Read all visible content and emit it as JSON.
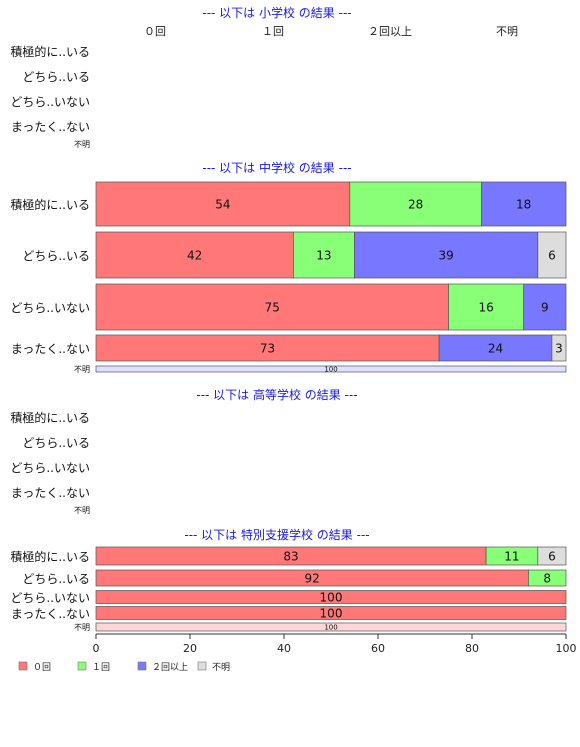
{
  "chart_data": {
    "type": "bar",
    "orientation": "horizontal-stacked-100",
    "legend": {
      "placement": "bottom-left",
      "items": [
        {
          "name": "０回",
          "color": "#ff7777"
        },
        {
          "name": "１回",
          "color": "#88ff77"
        },
        {
          "name": "２回以上",
          "color": "#7777ff"
        },
        {
          "name": "不明",
          "color": "#dddddd"
        }
      ]
    },
    "column_headers": [
      "０回",
      "１回",
      "２回以上",
      "不明"
    ],
    "categories": [
      "積極的に..いる",
      "どちら..いる",
      "どちら..いない",
      "まったく..ない",
      "不明"
    ],
    "x_axis": {
      "range": [
        0,
        100
      ],
      "ticks": [
        "0",
        "20",
        "40",
        "60",
        "80",
        "100"
      ]
    },
    "panels": [
      {
        "title": "--- 以下は 小学校 の結果 ---",
        "rows": [
          {
            "label": "積極的に..いる",
            "values": []
          },
          {
            "label": "どちら..いる",
            "values": []
          },
          {
            "label": "どちら..いない",
            "values": []
          },
          {
            "label": "まったく..ない",
            "values": []
          },
          {
            "label": "不明",
            "values": []
          }
        ]
      },
      {
        "title": "--- 以下は 中学校 の結果 ---",
        "rows": [
          {
            "label": "積極的に..いる",
            "values": [
              54,
              28,
              18,
              0
            ]
          },
          {
            "label": "どちら..いる",
            "values": [
              42,
              13,
              39,
              6
            ]
          },
          {
            "label": "どちら..いない",
            "values": [
              75,
              16,
              9,
              0
            ]
          },
          {
            "label": "まったく..ない",
            "values": [
              73,
              0,
              24,
              3
            ]
          },
          {
            "label": "不明",
            "values": [
              0,
              0,
              100,
              0
            ]
          }
        ]
      },
      {
        "title": "--- 以下は 高等学校 の結果 ---",
        "rows": [
          {
            "label": "積極的に..いる",
            "values": []
          },
          {
            "label": "どちら..いる",
            "values": []
          },
          {
            "label": "どちら..いない",
            "values": []
          },
          {
            "label": "まったく..ない",
            "values": []
          },
          {
            "label": "不明",
            "values": []
          }
        ]
      },
      {
        "title": "--- 以下は 特別支援学校 の結果 ---",
        "rows": [
          {
            "label": "積極的に..いる",
            "values": [
              83,
              11,
              0,
              6
            ]
          },
          {
            "label": "どちら..いる",
            "values": [
              92,
              8,
              0,
              0
            ]
          },
          {
            "label": "どちら..いない",
            "values": [
              100,
              0,
              0,
              0
            ]
          },
          {
            "label": "まったく..ない",
            "values": [
              100,
              0,
              0,
              0
            ]
          },
          {
            "label": "不明",
            "values": [
              100,
              0,
              0,
              0
            ]
          }
        ]
      }
    ]
  }
}
